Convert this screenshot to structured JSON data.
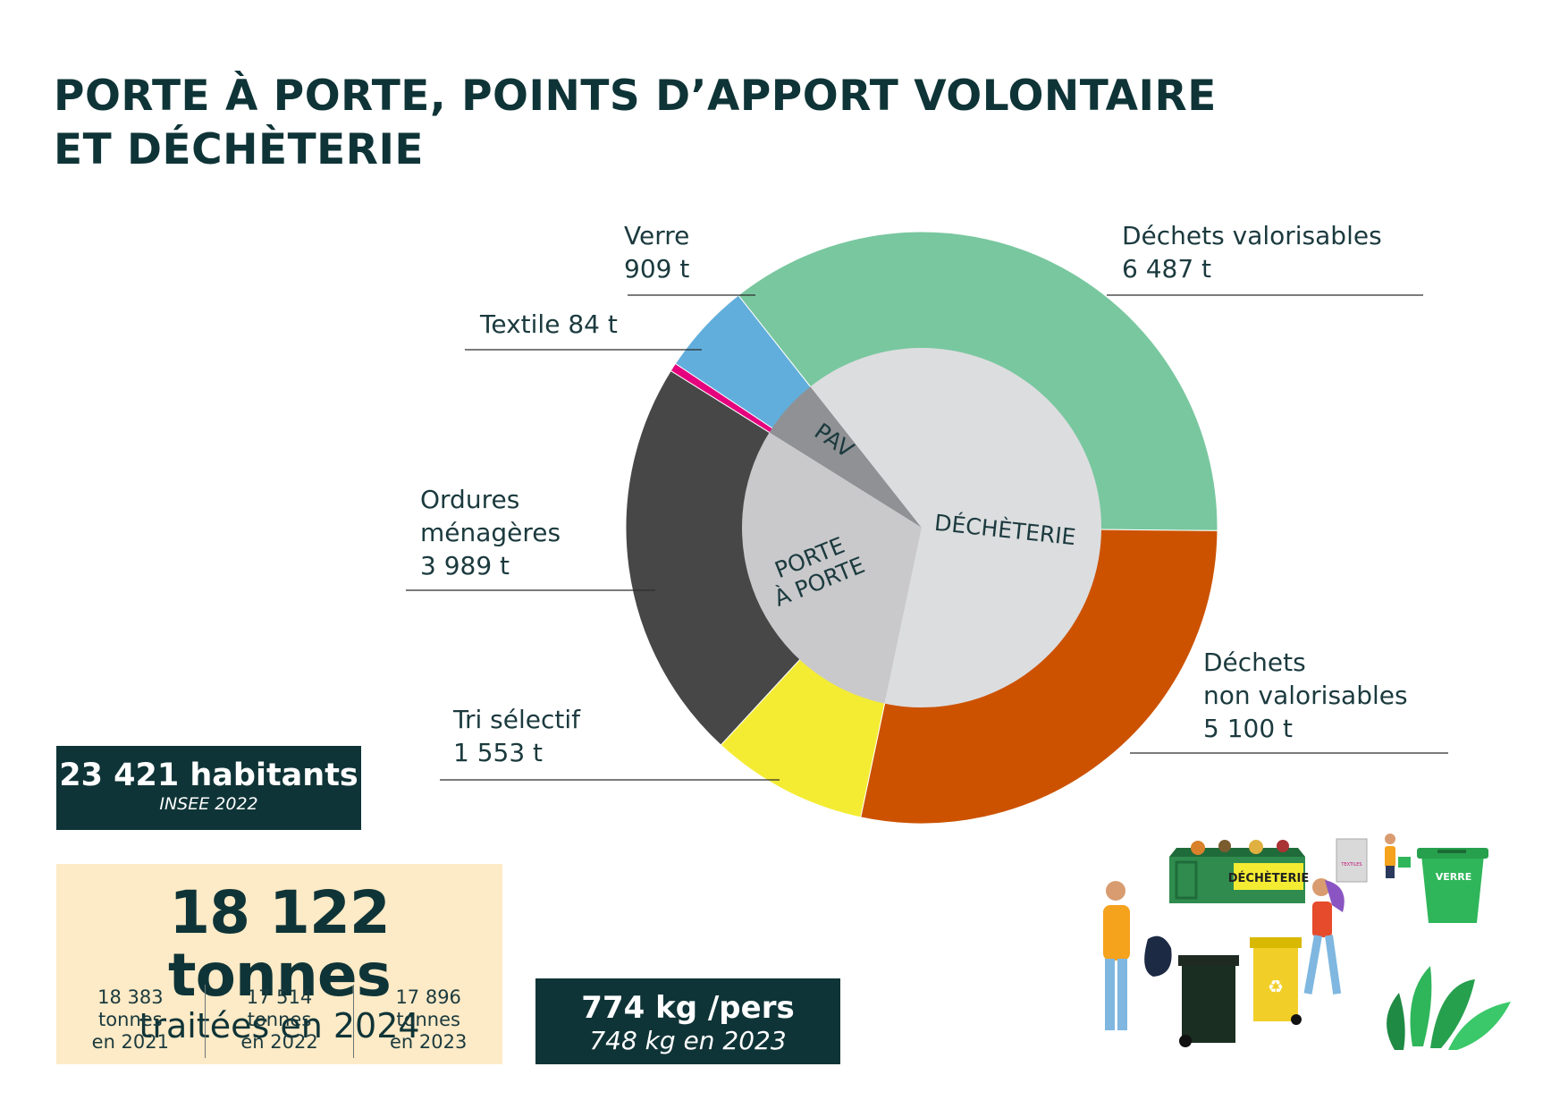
{
  "title": {
    "line1": "PORTE À PORTE, POINTS D’APPORT VOLONTAIRE",
    "line2": "ET DÉCHÈTERIE"
  },
  "chart_data": {
    "type": "pie",
    "title": "",
    "inner_ring": [
      {
        "label": "PORTE À PORTE",
        "value": 5542,
        "color": "#c9c9cb"
      },
      {
        "label": "PAV",
        "value": 993,
        "color": "#909194"
      },
      {
        "label": "DÉCHÈTERIE",
        "value": 11587,
        "color": "#dcdddf"
      }
    ],
    "outer_ring": [
      {
        "label": "Textile",
        "value": 84,
        "display": "84 t",
        "color": "#e5007e"
      },
      {
        "label": "Verre",
        "value": 909,
        "display": "909 t",
        "color": "#61aedc"
      },
      {
        "label": "Déchets valorisables",
        "value": 6487,
        "display": "6 487 t",
        "color": "#79c79f"
      },
      {
        "label": "Déchets non valorisables",
        "value": 5100,
        "display": "5 100 t",
        "color": "#cc5200"
      },
      {
        "label": "Tri sélectif",
        "value": 1553,
        "display": "1 553 t",
        "color": "#f4ec33"
      },
      {
        "label": "Ordures ménagères",
        "value": 3989,
        "display": "3 989 t",
        "color": "#474747"
      }
    ],
    "unit": "t"
  },
  "labels": {
    "verre": {
      "l1": "Verre",
      "l2": "909 t"
    },
    "textile": {
      "l1": "Textile 84 t"
    },
    "valorisables": {
      "l1": "Déchets valorisables",
      "l2": "6 487 t"
    },
    "ordures": {
      "l1": "Ordures",
      "l2": "ménagères",
      "l3": "3 989 t"
    },
    "non_valorisables": {
      "l1": "Déchets",
      "l2": "non valorisables",
      "l3": "5 100 t"
    },
    "tri": {
      "l1": "Tri sélectif",
      "l2": "1 553 t"
    },
    "pav": "PAV",
    "decheterie": "DÉCHÈTERIE",
    "porte": {
      "l1": "PORTE",
      "l2": "À PORTE"
    }
  },
  "population": {
    "value": "23 421 habitants",
    "source": "INSEE 2022"
  },
  "total": {
    "value": "18 122 tonnes",
    "sub": "traitées en 2024",
    "history": [
      {
        "value": "18 383",
        "unit": "tonnes",
        "year": "en 2021"
      },
      {
        "value": "17 514",
        "unit": "tonnes",
        "year": "en 2022"
      },
      {
        "value": "17 896",
        "unit": "tonnes",
        "year": "en 2023"
      }
    ]
  },
  "per_person": {
    "value": "774 kg /pers",
    "previous": "748 kg en 2023"
  },
  "illustration": {
    "decheterie_sign": "DÉCHÈTERIE",
    "textiles_sign": "TEXTILES",
    "verre_sign": "VERRE"
  }
}
